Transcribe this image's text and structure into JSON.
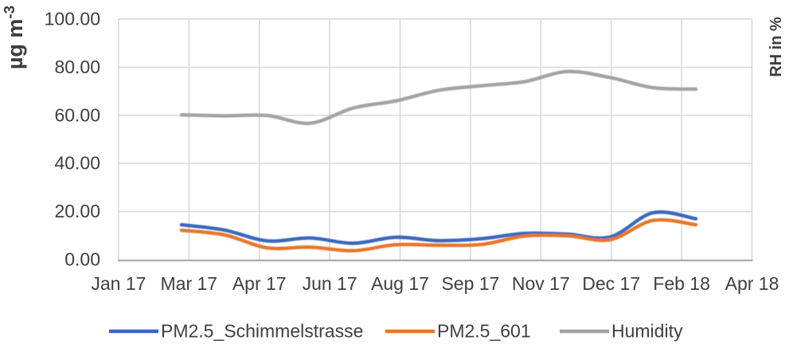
{
  "chart_data": {
    "type": "line",
    "title": "",
    "ylabel_left": "µg m⁻³",
    "ylabel_right": "RH in %",
    "x_tick_labels": [
      "Jan 17",
      "Mar 17",
      "Apr 17",
      "Jun 17",
      "Aug 17",
      "Sep 17",
      "Nov 17",
      "Dec 17",
      "Feb 18",
      "Apr 18"
    ],
    "y_tick_labels": [
      "0.00",
      "20.00",
      "40.00",
      "60.00",
      "80.00",
      "100.00"
    ],
    "ylim": [
      0,
      100
    ],
    "grid": true,
    "legend_position": "bottom",
    "line_style": "smooth",
    "series_x_span_frac": {
      "start": 0.0994,
      "end": 0.9114
    },
    "series": [
      {
        "name": "PM2.5_Schimmelstrasse",
        "color": "#3B67BC",
        "axis": "left",
        "values": [
          14.5,
          12.3,
          7.8,
          9.0,
          6.8,
          9.3,
          7.9,
          8.7,
          10.9,
          10.6,
          9.4,
          19.5,
          17.0
        ]
      },
      {
        "name": "PM2.5_601",
        "color": "#E8762C",
        "axis": "left",
        "values": [
          12.2,
          10.3,
          4.9,
          5.2,
          3.7,
          6.2,
          6.0,
          6.3,
          9.8,
          9.9,
          8.3,
          16.3,
          14.5
        ]
      },
      {
        "name": "Humidity",
        "color": "#A3A3A3",
        "axis": "right",
        "values": [
          60.2,
          59.8,
          59.9,
          56.7,
          63.0,
          66.0,
          70.4,
          72.3,
          74.0,
          78.2,
          75.7,
          71.5,
          70.9
        ]
      }
    ],
    "colors": {
      "gridline": "#D6D6D6",
      "axis_line": "#B0B0B2",
      "text": "#404040"
    }
  }
}
